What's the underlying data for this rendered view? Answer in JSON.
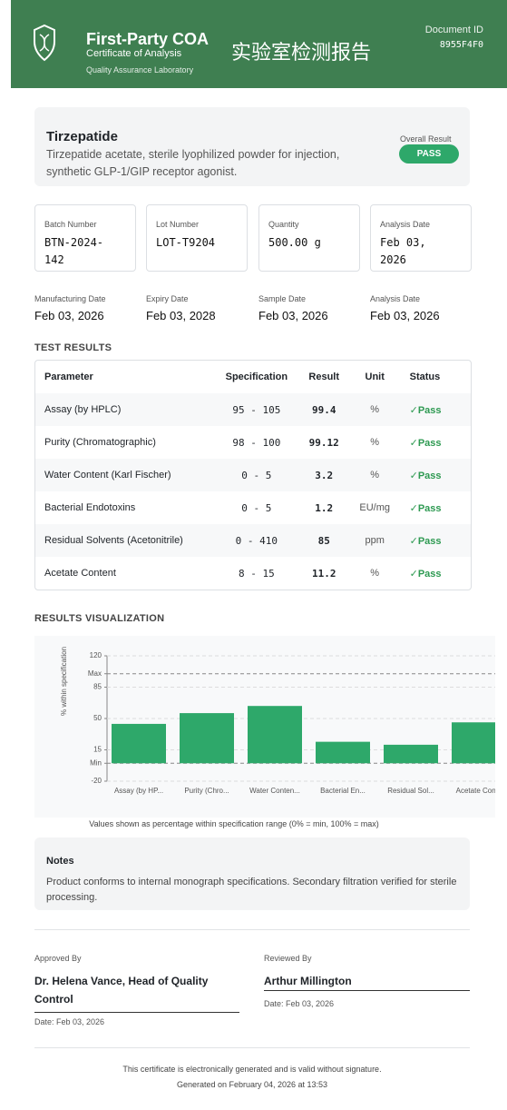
{
  "header": {
    "title": "First-Party COA",
    "subtitle": "Certificate of Analysis",
    "lab": "Quality Assurance Laboratory",
    "chinese_title": "实验室检测报告",
    "document_id_label": "Document ID",
    "document_id": "8955F4F0"
  },
  "product": {
    "name": "Tirzepatide",
    "description": "Tirzepatide acetate, sterile lyophilized powder for injection, synthetic GLP-1/GIP receptor agonist.",
    "overall_label": "Overall Result",
    "overall_value": "PASS"
  },
  "fields": [
    {
      "label": "Batch Number",
      "value": "BTN-2024-142"
    },
    {
      "label": "Lot Number",
      "value": "LOT-T9204"
    },
    {
      "label": "Quantity",
      "value": "500.00 g"
    },
    {
      "label": "Analysis Date",
      "value": "Feb 03, 2026"
    }
  ],
  "dates": [
    {
      "label": "Manufacturing Date",
      "value": "Feb 03, 2026"
    },
    {
      "label": "Expiry Date",
      "value": "Feb 03, 2028"
    },
    {
      "label": "Sample Date",
      "value": "Feb 03, 2026"
    },
    {
      "label": "Analysis Date",
      "value": "Feb 03, 2026"
    }
  ],
  "test_results": {
    "heading": "TEST RESULTS",
    "columns": [
      "Parameter",
      "Specification",
      "Result",
      "Unit",
      "Status"
    ],
    "rows": [
      [
        "Assay (by HPLC)",
        "95 - 105",
        "99.4",
        "%",
        "Pass"
      ],
      [
        "Purity (Chromatographic)",
        "98 - 100",
        "99.12",
        "%",
        "Pass"
      ],
      [
        "Water Content (Karl Fischer)",
        "0 - 5",
        "3.2",
        "%",
        "Pass"
      ],
      [
        "Bacterial Endotoxins",
        "0 - 5",
        "1.2",
        "EU/mg",
        "Pass"
      ],
      [
        "Residual Solvents (Acetonitrile)",
        "0 - 410",
        "85",
        "ppm",
        "Pass"
      ],
      [
        "Acetate Content",
        "8 - 15",
        "11.2",
        "%",
        "Pass"
      ]
    ]
  },
  "visualization_heading": "RESULTS VISUALIZATION",
  "chart_data": {
    "type": "bar",
    "ylabel": "% within specification",
    "categories": [
      "Assay (by HP...",
      "Purity (Chro...",
      "Water Conten...",
      "Bacterial En...",
      "Residual Sol...",
      "Acetate Con..."
    ],
    "values": [
      44,
      56,
      64,
      24,
      20.7,
      45.7
    ],
    "color": "#2ea86a",
    "ylim": [
      -20,
      120
    ],
    "yticks": [
      -20,
      {
        "value": 0,
        "label": "Min"
      },
      15,
      50,
      85,
      {
        "value": 100,
        "label": "Max"
      },
      120
    ],
    "grid": true,
    "note": "Values shown as percentage within specification range (0% = min, 100% = max)"
  },
  "notes": {
    "title": "Notes",
    "text": "Product conforms to internal monograph specifications. Secondary filtration verified for sterile processing."
  },
  "signatures": [
    {
      "label": "Approved By",
      "name": "Dr. Helena Vance, Head of Quality Control",
      "date": "Date: Feb 03, 2026"
    },
    {
      "label": "Reviewed By",
      "name": "Arthur Millington",
      "date": "Date: Feb 03, 2026"
    }
  ],
  "footer": [
    "This certificate is electronically generated and is valid without signature.",
    "Generated on February 04, 2026 at 13:53"
  ]
}
